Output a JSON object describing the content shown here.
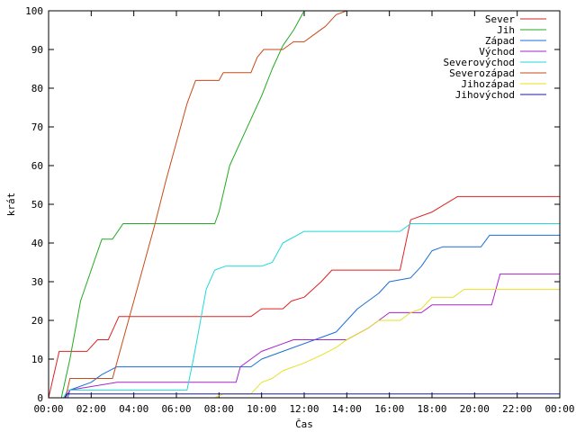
{
  "chart_data": {
    "type": "line",
    "xlabel": "Čas",
    "ylabel": "krát",
    "xlim": [
      0,
      24
    ],
    "ylim": [
      0,
      100
    ],
    "x_ticks": [
      {
        "v": 0,
        "label": "00:00"
      },
      {
        "v": 2,
        "label": "02:00"
      },
      {
        "v": 4,
        "label": "04:00"
      },
      {
        "v": 6,
        "label": "06:00"
      },
      {
        "v": 8,
        "label": "08:00"
      },
      {
        "v": 10,
        "label": "10:00"
      },
      {
        "v": 12,
        "label": "12:00"
      },
      {
        "v": 14,
        "label": "14:00"
      },
      {
        "v": 16,
        "label": "16:00"
      },
      {
        "v": 18,
        "label": "18:00"
      },
      {
        "v": 20,
        "label": "20:00"
      },
      {
        "v": 22,
        "label": "22:00"
      },
      {
        "v": 24,
        "label": "00:00"
      }
    ],
    "y_ticks": [
      0,
      10,
      20,
      30,
      40,
      50,
      60,
      70,
      80,
      90,
      100
    ],
    "grid": false,
    "legend_position": "top-right",
    "series": [
      {
        "name": "Sever",
        "color": "#dd2222",
        "points": [
          [
            0.0,
            0
          ],
          [
            0.5,
            12
          ],
          [
            1.8,
            12
          ],
          [
            2.3,
            15
          ],
          [
            2.8,
            15
          ],
          [
            3.3,
            21
          ],
          [
            9.5,
            21
          ],
          [
            10.0,
            23
          ],
          [
            11.0,
            23
          ],
          [
            11.4,
            25
          ],
          [
            12.0,
            26
          ],
          [
            12.8,
            30
          ],
          [
            13.3,
            33
          ],
          [
            16.5,
            33
          ],
          [
            17.0,
            46
          ],
          [
            18.0,
            48
          ],
          [
            19.2,
            52
          ],
          [
            24.0,
            52
          ]
        ]
      },
      {
        "name": "Jih",
        "color": "#22aa22",
        "points": [
          [
            0.6,
            0
          ],
          [
            1.0,
            10
          ],
          [
            1.5,
            25
          ],
          [
            2.0,
            33
          ],
          [
            2.5,
            41
          ],
          [
            3.0,
            41
          ],
          [
            3.5,
            45
          ],
          [
            7.8,
            45
          ],
          [
            8.0,
            48
          ],
          [
            8.5,
            60
          ],
          [
            9.0,
            66
          ],
          [
            9.5,
            72
          ],
          [
            10.0,
            78
          ],
          [
            10.5,
            85
          ],
          [
            11.0,
            91
          ],
          [
            11.5,
            95
          ],
          [
            12.0,
            100
          ]
        ]
      },
      {
        "name": "Západ",
        "color": "#1a6ed8",
        "points": [
          [
            0.9,
            0
          ],
          [
            1.0,
            2
          ],
          [
            2.0,
            4
          ],
          [
            2.5,
            6
          ],
          [
            3.2,
            8
          ],
          [
            9.5,
            8
          ],
          [
            10.0,
            10
          ],
          [
            11.0,
            12
          ],
          [
            12.5,
            15
          ],
          [
            13.5,
            17
          ],
          [
            14.5,
            23
          ],
          [
            15.0,
            25
          ],
          [
            15.5,
            27
          ],
          [
            16.0,
            30
          ],
          [
            17.0,
            31
          ],
          [
            17.5,
            34
          ],
          [
            18.0,
            38
          ],
          [
            18.5,
            39
          ],
          [
            20.3,
            39
          ],
          [
            20.7,
            42
          ],
          [
            24.0,
            42
          ]
        ]
      },
      {
        "name": "Východ",
        "color": "#aa22cc",
        "points": [
          [
            0.8,
            0
          ],
          [
            1.0,
            2
          ],
          [
            3.2,
            4
          ],
          [
            8.8,
            4
          ],
          [
            9.0,
            8
          ],
          [
            9.5,
            10
          ],
          [
            10.0,
            12
          ],
          [
            11.0,
            14
          ],
          [
            11.5,
            15
          ],
          [
            14.0,
            15
          ],
          [
            15.0,
            18
          ],
          [
            16.0,
            22
          ],
          [
            17.5,
            22
          ],
          [
            18.0,
            24
          ],
          [
            20.8,
            24
          ],
          [
            21.2,
            32
          ],
          [
            24.0,
            32
          ]
        ]
      },
      {
        "name": "Severovýchod",
        "color": "#22d8d8",
        "points": [
          [
            0.7,
            0
          ],
          [
            0.9,
            2
          ],
          [
            6.5,
            2
          ],
          [
            6.8,
            10
          ],
          [
            7.0,
            16
          ],
          [
            7.4,
            28
          ],
          [
            7.8,
            33
          ],
          [
            8.3,
            34
          ],
          [
            10.0,
            34
          ],
          [
            10.5,
            35
          ],
          [
            11.0,
            40
          ],
          [
            12.0,
            43
          ],
          [
            16.5,
            43
          ],
          [
            17.0,
            45
          ],
          [
            24.0,
            45
          ]
        ]
      },
      {
        "name": "Severozápad",
        "color": "#c84a1a",
        "points": [
          [
            0.8,
            0
          ],
          [
            1.0,
            5
          ],
          [
            3.0,
            5
          ],
          [
            3.5,
            15
          ],
          [
            4.0,
            25
          ],
          [
            4.5,
            35
          ],
          [
            5.0,
            45
          ],
          [
            5.5,
            56
          ],
          [
            6.0,
            66
          ],
          [
            6.5,
            76
          ],
          [
            6.9,
            82
          ],
          [
            8.0,
            82
          ],
          [
            8.2,
            84
          ],
          [
            9.5,
            84
          ],
          [
            9.8,
            88
          ],
          [
            10.1,
            90
          ],
          [
            11.0,
            90
          ],
          [
            11.5,
            92
          ],
          [
            12.0,
            92
          ],
          [
            12.5,
            94
          ],
          [
            13.0,
            96
          ],
          [
            13.5,
            99
          ],
          [
            14.0,
            100
          ]
        ]
      },
      {
        "name": "Jihozápad",
        "color": "#e8e022",
        "points": [
          [
            7.8,
            0
          ],
          [
            8.2,
            1
          ],
          [
            9.5,
            1
          ],
          [
            10.0,
            4
          ],
          [
            10.5,
            5
          ],
          [
            11.0,
            7
          ],
          [
            12.0,
            9
          ],
          [
            12.8,
            11
          ],
          [
            13.5,
            13
          ],
          [
            14.0,
            15
          ],
          [
            15.0,
            18
          ],
          [
            15.5,
            20
          ],
          [
            16.5,
            20
          ],
          [
            17.0,
            22
          ],
          [
            17.5,
            23
          ],
          [
            18.0,
            26
          ],
          [
            19.0,
            26
          ],
          [
            19.5,
            28
          ],
          [
            24.0,
            28
          ]
        ]
      },
      {
        "name": "Jihovýchod",
        "color": "#1a1aaa",
        "points": [
          [
            0.75,
            0
          ],
          [
            0.85,
            1
          ],
          [
            24.0,
            1
          ]
        ]
      }
    ]
  }
}
